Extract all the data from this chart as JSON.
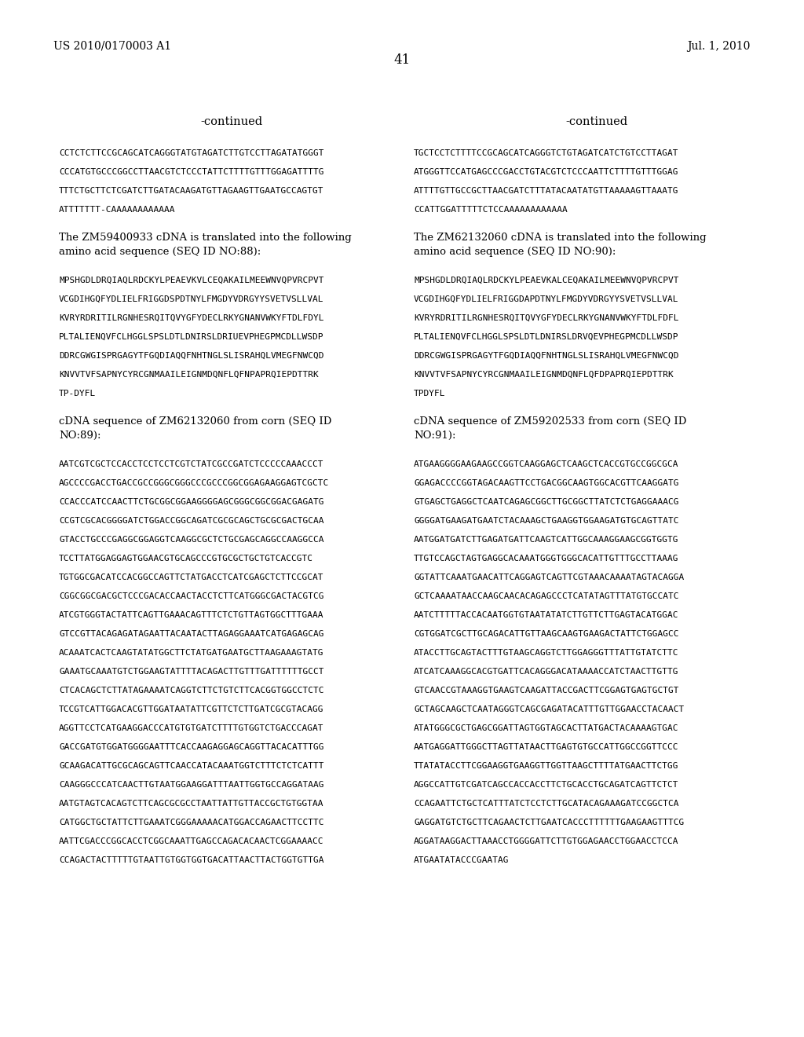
{
  "bg_color": "#ffffff",
  "header_left": "US 2010/0170003 A1",
  "header_right": "Jul. 1, 2010",
  "page_number": "41",
  "content_left": [
    {
      "type": "centered",
      "text": "-continued"
    },
    {
      "type": "gap_large"
    },
    {
      "type": "mono",
      "text": "CCTCTCTTCCGCAGCATCAGGGTATGTAGATCTTGTCCTTAGATATGGGT"
    },
    {
      "type": "gap_mono"
    },
    {
      "type": "mono",
      "text": "CCCATGTGCCCGGCCTTAACGTCTCCCTATTCTTTTGTTTGGAGATTTTG"
    },
    {
      "type": "gap_mono"
    },
    {
      "type": "mono",
      "text": "TTTCTGCTTCTCGATCTTGATACAAGATGTTAGAAGTTGAATGCCAGTGT"
    },
    {
      "type": "gap_mono"
    },
    {
      "type": "mono",
      "text": "ATTTTTTT-CAAAAAAAAAAAA"
    },
    {
      "type": "gap_body"
    },
    {
      "type": "body",
      "text": "The ZM59400933 cDNA is translated into the following amino acid sequence (SEQ ID NO:88):"
    },
    {
      "type": "gap_large"
    },
    {
      "type": "mono",
      "text": "MPSHGDLDRQIAQLRDCKYLPEAEVKVLCEQAKAILMEEWNVQPVRCPVT"
    },
    {
      "type": "gap_mono"
    },
    {
      "type": "mono",
      "text": "VCGDIHGQFYDLIELFRIGGDSPDTNYLFMGDYVDRGYYSVETVSLLVAL"
    },
    {
      "type": "gap_mono"
    },
    {
      "type": "mono",
      "text": "KVRYRDRITILRGNHESRQITQVYGFYDECLRKYGNANVWKYFTDLFDYL"
    },
    {
      "type": "gap_mono"
    },
    {
      "type": "mono",
      "text": "PLTALIENQVFCLHGGLSPSLDTLDNIRSLDRIUEVPHEGPMCDLLWSDP"
    },
    {
      "type": "gap_mono"
    },
    {
      "type": "mono",
      "text": "DDRCGWGISPRGAGYTFGQDIAQQFNHTNGLSLISRAHQLVMEGFNWCQD"
    },
    {
      "type": "gap_mono"
    },
    {
      "type": "mono",
      "text": "KNVVTVFSAPNYCYRCGNMAAILEIGNMDQNFLQFNPAPRQIEPDTTRK"
    },
    {
      "type": "gap_mono"
    },
    {
      "type": "mono",
      "text": "TP-DYFL"
    },
    {
      "type": "gap_body"
    },
    {
      "type": "body",
      "text": "cDNA sequence of ZM62132060 from corn (SEQ ID NO:89):"
    },
    {
      "type": "gap_large"
    },
    {
      "type": "mono",
      "text": "AATCGTCGCTCCACCTCCTCCTCGTCTATCGCCGATCTCCCCCAAACCCT"
    },
    {
      "type": "gap_mono"
    },
    {
      "type": "mono",
      "text": "AGCCCCGACCTGACCGCCGGGCGGGCCCGCCCGGCGGAGAAGGAGTCGCTC"
    },
    {
      "type": "gap_mono"
    },
    {
      "type": "mono",
      "text": "CCACCCATCCAACTTCTGCGGCGGAAGGGGAGCGGGCGGCGGACGAGATG"
    },
    {
      "type": "gap_mono"
    },
    {
      "type": "mono",
      "text": "CCGTCGCACGGGGATCTGGACCGGCAGATCGCGCAGCTGCGCGACTGCAA"
    },
    {
      "type": "gap_mono"
    },
    {
      "type": "mono",
      "text": "GTACCTGCCCGAGGCGGAGGTCAAGGCGCTCTGCGAGCAGGCCAAGGCCA"
    },
    {
      "type": "gap_mono"
    },
    {
      "type": "mono",
      "text": "TCCTTATGGAGGAGTGGAACGTGCAGCCCGTGCGCTGCTGTCACCGTC"
    },
    {
      "type": "gap_mono"
    },
    {
      "type": "mono",
      "text": "TGTGGCGACATCCACGGCCAGTTCTATGACCTCATCGAGCTCTTCCGCAT"
    },
    {
      "type": "gap_mono"
    },
    {
      "type": "mono",
      "text": "CGGCGGCGACGCTCCCGACACCAACTACCTCTTCATGGGCGACTACGTCG"
    },
    {
      "type": "gap_mono"
    },
    {
      "type": "mono",
      "text": "ATCGTGGGTACTATTCAGTTGAAACAGTTTCTCTGTTAGTGGCTTTGAAA"
    },
    {
      "type": "gap_mono"
    },
    {
      "type": "mono",
      "text": "GTCCGTTACAGAGATAGAATTACAATACTTAGAGGAAATCATGAGAGCAG"
    },
    {
      "type": "gap_mono"
    },
    {
      "type": "mono",
      "text": "ACAAATCACTCAAGTATATGGCTTCTATGATGAATGCTTAAGAAAGTATG"
    },
    {
      "type": "gap_mono"
    },
    {
      "type": "mono",
      "text": "GAAATGCAAATGTCTGGAAGTATTTTACAGACTTGTTTGATTTTTTGCCT"
    },
    {
      "type": "gap_mono"
    },
    {
      "type": "mono",
      "text": "CTCACAGCTCTTATAGAAAATCAGGTCTTCTGTCTTCACGGTGGCCTCTC"
    },
    {
      "type": "gap_mono"
    },
    {
      "type": "mono",
      "text": "TCCGTCATTGGACACGTTGGATAATATTCGTTCTCTTGATCGCGTACAGG"
    },
    {
      "type": "gap_mono"
    },
    {
      "type": "mono",
      "text": "AGGTTCCTCATGAAGGACCCATGTGTGATCTTTTGTGGTCTGACCCAGAT"
    },
    {
      "type": "gap_mono"
    },
    {
      "type": "mono",
      "text": "GACCGATGTGGATGGGGAATTTCACCAAGAGGAGCAGGTTACACATTTGG"
    },
    {
      "type": "gap_mono"
    },
    {
      "type": "mono",
      "text": "GCAAGACATTGCGCAGCAGTTCAACCATACAAATGGTCTTTCTCTCATTT"
    },
    {
      "type": "gap_mono"
    },
    {
      "type": "mono",
      "text": "CAAGGGCCCATCAACTTGTAATGGAAGGATTTAATTGGTGCCAGGATAAG"
    },
    {
      "type": "gap_mono"
    },
    {
      "type": "mono",
      "text": "AATGTAGTCACAGTCTTCAGCGCGCCTAATTATTGTTACCGCTGTGGTAA"
    },
    {
      "type": "gap_mono"
    },
    {
      "type": "mono",
      "text": "CATGGCTGCTATTCTTGAAATCGGGAAAAACATGGACCAGAACTTCCTTC"
    },
    {
      "type": "gap_mono"
    },
    {
      "type": "mono",
      "text": "AATTCGACCCGGCACCTCGGCAAATTGAGCCAGACACAACTCGGAAAACC"
    },
    {
      "type": "gap_mono"
    },
    {
      "type": "mono",
      "text": "CCAGACTACTTTTTGTAATTGTGGTGGTGACATTAACTTACTGGTGTTGA"
    }
  ],
  "content_right": [
    {
      "type": "centered",
      "text": "-continued"
    },
    {
      "type": "gap_large"
    },
    {
      "type": "mono",
      "text": "TGCTCCTCTTTTCCGCAGCATCAGGGTCTGTAGATCATCTGTCCTTAGAT"
    },
    {
      "type": "gap_mono"
    },
    {
      "type": "mono",
      "text": "ATGGGTTCCATGAGCCCGACCTGTACGTCTCCCAATTCTTTTGTTTGGAG"
    },
    {
      "type": "gap_mono"
    },
    {
      "type": "mono",
      "text": "ATTTTGTTGCCGCTTAACGATCTTTATACAATATGTTAAAAAGTTAAATG"
    },
    {
      "type": "gap_mono"
    },
    {
      "type": "mono",
      "text": "CCATTGGATTTTTCTCCAAAAAAAAAAAA"
    },
    {
      "type": "gap_body"
    },
    {
      "type": "body",
      "text": "The ZM62132060 cDNA is translated into the following amino acid sequence (SEQ ID NO:90):"
    },
    {
      "type": "gap_large"
    },
    {
      "type": "mono",
      "text": "MPSHGDLDRQIAQLRDCKYLPEAEVKALCEQAKAILMEEWNVQPVRCPVT"
    },
    {
      "type": "gap_mono"
    },
    {
      "type": "mono",
      "text": "VCGDIHGQFYDLIELFRIGGDAPDTNYLFMGDYVDRGYYSVETVSLLVAL"
    },
    {
      "type": "gap_mono"
    },
    {
      "type": "mono",
      "text": "KVRYRDRITILRGNHESRQITQVYGFYDECLRKYGNANVWKYFTDLFDFL"
    },
    {
      "type": "gap_mono"
    },
    {
      "type": "mono",
      "text": "PLTALIENQVFCLHGGLSPSLDTLDNIRSLDRVQEVPHEGPMCDLLWSDP"
    },
    {
      "type": "gap_mono"
    },
    {
      "type": "mono",
      "text": "DDRCGWGISPRGAGYTFGQDIAQQFNHTNGLSLISRAHQLVMEGFNWCQD"
    },
    {
      "type": "gap_mono"
    },
    {
      "type": "mono",
      "text": "KNVVTVFSAPNYCYRCGNMAAILEIGNMDQNFLQFDPAPRQIEPDTTRK"
    },
    {
      "type": "gap_mono"
    },
    {
      "type": "mono",
      "text": "TPDYFL"
    },
    {
      "type": "gap_body"
    },
    {
      "type": "body",
      "text": "cDNA sequence of ZM59202533 from corn (SEQ ID NO:91):"
    },
    {
      "type": "gap_large"
    },
    {
      "type": "mono",
      "text": "ATGAAGGGGAAGAAGCCGGTCAAGGAGCTCAAGCTCACCGTGCCGGCGCA"
    },
    {
      "type": "gap_mono"
    },
    {
      "type": "mono",
      "text": "GGAGACCCCGGTAGACAAGTTCCTGACGGCAAGTGGCACGTTCAAGGATG"
    },
    {
      "type": "gap_mono"
    },
    {
      "type": "mono",
      "text": "GTGAGCTGAGGCTCAATCAGAGCGGCTTGCGGCTTATCTCTGAGGAAACG"
    },
    {
      "type": "gap_mono"
    },
    {
      "type": "mono",
      "text": "GGGGATGAAGATGAATCTACAAAGCTGAAGGTGGAAGATGTGCAGTTATC"
    },
    {
      "type": "gap_mono"
    },
    {
      "type": "mono",
      "text": "AATGGATGATCTTGAGATGATTCAAGTCATTGGCAAAGGAAGCGGTGGTG"
    },
    {
      "type": "gap_mono"
    },
    {
      "type": "mono",
      "text": "TTGTCCAGCTAGTGAGGCACAAATGGGTGGGCACATTGTTTGCCTTAAAG"
    },
    {
      "type": "gap_mono"
    },
    {
      "type": "mono",
      "text": "GGTATTCAAATGAACATTCAGGAGTCAGTTCGTAAACAAAATAGTACAGGA"
    },
    {
      "type": "gap_mono"
    },
    {
      "type": "mono",
      "text": "GCTCAAAATAACCAAGCAACACAGAGCCCTCATATAGTTTATGTGCCATC"
    },
    {
      "type": "gap_mono"
    },
    {
      "type": "mono",
      "text": "AATCTTTTTACCACAATGGTGTAATATATCTTGTTCTTGAGTACATGGAC"
    },
    {
      "type": "gap_mono"
    },
    {
      "type": "mono",
      "text": "CGTGGATCGCTTGCAGACATTGTTAAGCAAGTGAAGACTATTCTGGAGCC"
    },
    {
      "type": "gap_mono"
    },
    {
      "type": "mono",
      "text": "ATACCTTGCAGTACTTTGTAAGCAGGTCTTGGAGGGTTTATTGTATCTTC"
    },
    {
      "type": "gap_mono"
    },
    {
      "type": "mono",
      "text": "ATCATCAAAGGCACGTGATTCACAGGGACATAAAACCATCTAACTTGTTG"
    },
    {
      "type": "gap_mono"
    },
    {
      "type": "mono",
      "text": "GTCAACCGTAAAGGTGAAGTCAAGATTACCGACTTCGGAGTGAGTGCTGT"
    },
    {
      "type": "gap_mono"
    },
    {
      "type": "mono",
      "text": "GCTAGCAAGCTCAATAGGGTCAGCGAGATACATTTGTTGGAACCTACAACT"
    },
    {
      "type": "gap_mono"
    },
    {
      "type": "mono",
      "text": "ATATGGGCGCTGAGCGGATTAGTGGTAGCACTTATGACTACAAAAGTGAC"
    },
    {
      "type": "gap_mono"
    },
    {
      "type": "mono",
      "text": "AATGAGGATTGGGCTTAGTTATAACTTGAGTGTGCCATTGGCCGGTTCCC"
    },
    {
      "type": "gap_mono"
    },
    {
      "type": "mono",
      "text": "TTATATACCTTCGGAAGGTGAAGGTTGGTTAAGCTTTTATGAACTTCTGG"
    },
    {
      "type": "gap_mono"
    },
    {
      "type": "mono",
      "text": "AGGCCATTGTCGATCAGCCACCACCTTCTGCACCTGCAGATCAGTTCTCT"
    },
    {
      "type": "gap_mono"
    },
    {
      "type": "mono",
      "text": "CCAGAATTCTGCTCATTTATCTCCTCTTGCATACAGAAAGATCCGGCTCA"
    },
    {
      "type": "gap_mono"
    },
    {
      "type": "mono",
      "text": "GAGGATGTCTGCTTCAGAACTCTTGAATCACCCTTTTTTGAAGAAGTTTCG"
    },
    {
      "type": "gap_mono"
    },
    {
      "type": "mono",
      "text": "AGGATAAGGACTTAAACCTGGGGATTCTTGTGGAGAACCTGGAACCTCCA"
    },
    {
      "type": "gap_mono"
    },
    {
      "type": "mono",
      "text": "ATGAATATACCCGAATAG"
    }
  ],
  "mono_fs": 8.0,
  "body_fs": 9.5,
  "header_fs": 10.0,
  "pagenum_fs": 12.0,
  "cont_fs": 10.5
}
